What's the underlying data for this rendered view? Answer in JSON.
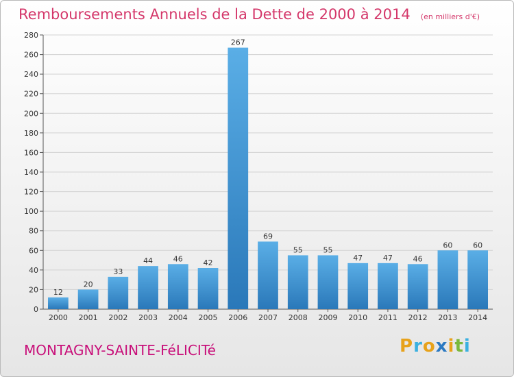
{
  "header": {
    "title": "Remboursements Annuels de la Dette de 2000 à 2014",
    "unit": "(en milliers d'€)"
  },
  "footer": {
    "commune": "MONTAGNY-SAINTE-FéLICITé",
    "logo_text": "Proxiti",
    "logo_letters": [
      {
        "ch": "P",
        "color": "#e7a21b"
      },
      {
        "ch": "r",
        "color": "#3ab0e0"
      },
      {
        "ch": "o",
        "color": "#e7a21b"
      },
      {
        "ch": "x",
        "color": "#2b79c2"
      },
      {
        "ch": "i",
        "color": "#e7a21b"
      },
      {
        "ch": "t",
        "color": "#7ab83c"
      },
      {
        "ch": "i",
        "color": "#3ab0e0"
      }
    ]
  },
  "colors": {
    "bar_top": "#5aaee6",
    "bar_bottom": "#2a78b9",
    "title": "#d4376a",
    "commune": "#c8107a",
    "grid": "#d2d2d2"
  },
  "chart_data": {
    "type": "bar",
    "categories": [
      "2000",
      "2001",
      "2002",
      "2003",
      "2004",
      "2005",
      "2006",
      "2007",
      "2008",
      "2009",
      "2010",
      "2011",
      "2012",
      "2013",
      "2014"
    ],
    "values": [
      12,
      20,
      33,
      44,
      46,
      42,
      267,
      69,
      55,
      55,
      47,
      47,
      46,
      60,
      60
    ],
    "data_labels": [
      "12",
      "20",
      "33",
      "44",
      "46",
      "42",
      "267",
      "69",
      "55",
      "55",
      "47",
      "47",
      "46",
      "60",
      "60"
    ],
    "y_ticks": [
      0,
      20,
      40,
      60,
      80,
      100,
      120,
      140,
      160,
      180,
      200,
      220,
      240,
      260,
      280
    ],
    "ylim": [
      0,
      280
    ],
    "grid": true,
    "legend": "none"
  }
}
